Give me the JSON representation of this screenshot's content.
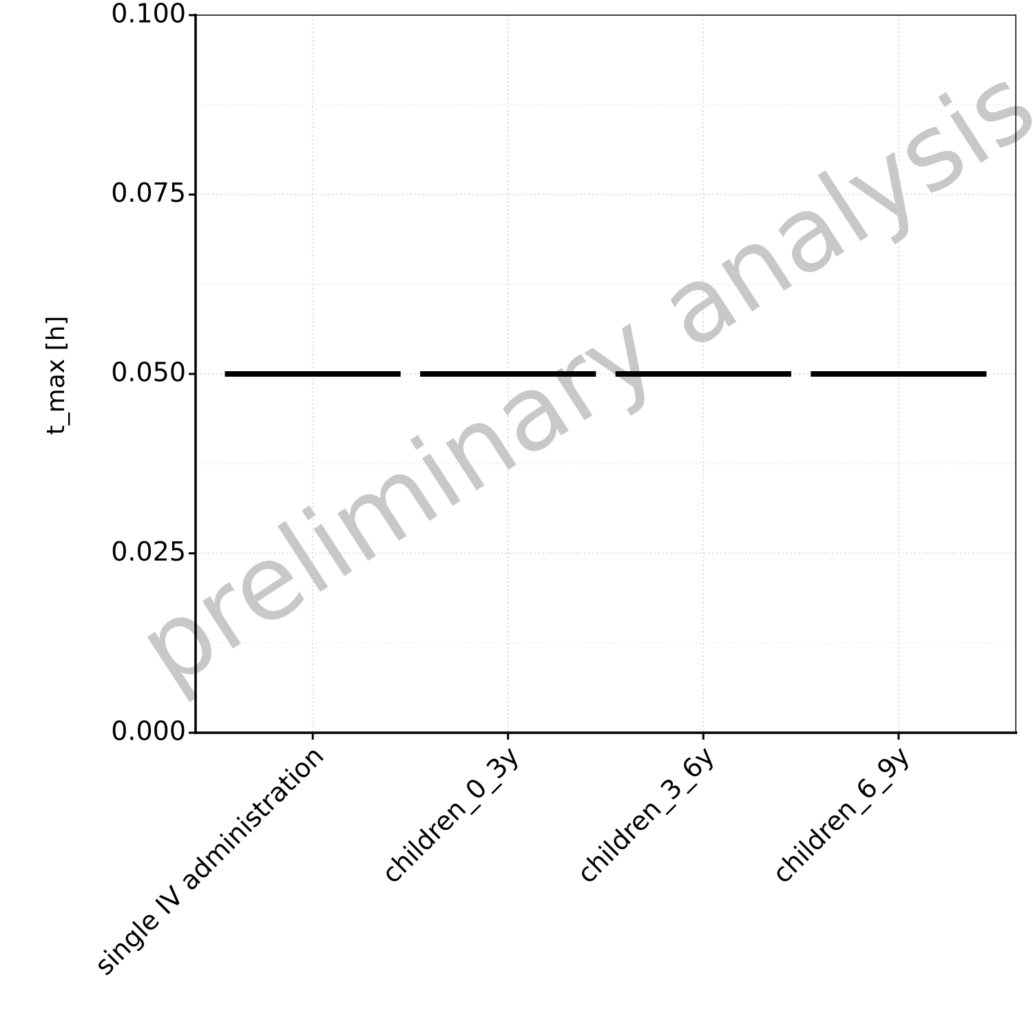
{
  "chart_data": {
    "type": "box",
    "watermark": "preliminary analysis",
    "y_label": "t_max [h]",
    "categories": [
      "single IV administration",
      "children_0_3y",
      "children_3_6y",
      "children_6_9y"
    ],
    "values": [
      0.05,
      0.05,
      0.05,
      0.05
    ],
    "color": "#000000",
    "ylim": [
      0,
      0.1
    ],
    "yticks": [
      {
        "value": 0,
        "label": "0.000"
      },
      {
        "value": 0.025,
        "label": "0.025"
      },
      {
        "value": 0.05,
        "label": "0.050"
      },
      {
        "value": 0.075,
        "label": "0.075"
      },
      {
        "value": 0.1,
        "label": "0.100"
      }
    ],
    "grid": true
  }
}
